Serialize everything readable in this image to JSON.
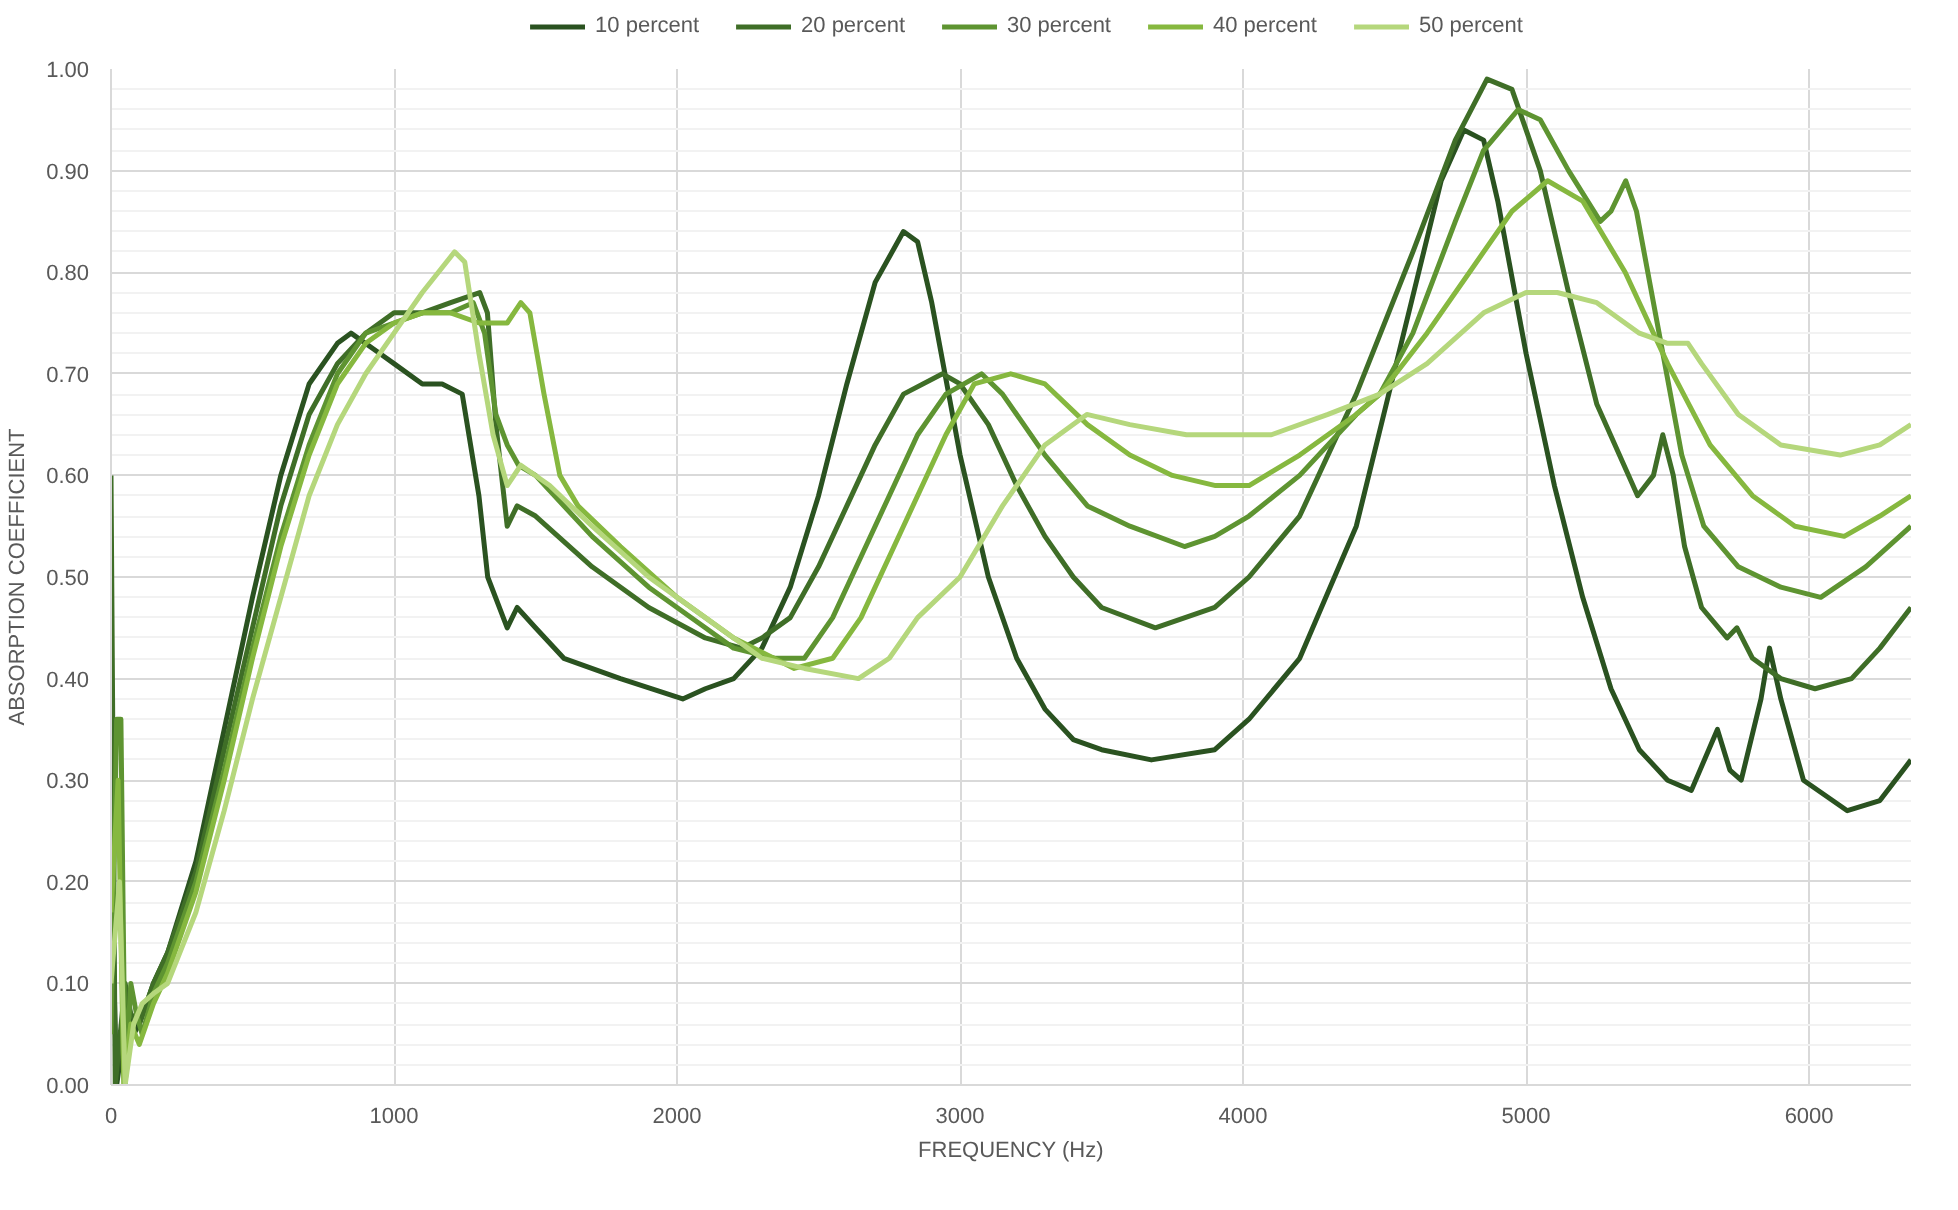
{
  "chart_data": {
    "type": "line",
    "xlabel": "FREQUENCY (Hz)",
    "ylabel": "ABSORPTION COEFFICIENT",
    "xlim": [
      0,
      6360
    ],
    "ylim": [
      0,
      1
    ],
    "xticks": [
      0,
      1000,
      2000,
      3000,
      4000,
      5000,
      6000
    ],
    "yticks": [
      {
        "value": 0,
        "label": "0.00"
      },
      {
        "value": 0.1,
        "label": "0.10"
      },
      {
        "value": 0.2,
        "label": "0.20"
      },
      {
        "value": 0.3,
        "label": "0.30"
      },
      {
        "value": 0.4,
        "label": "0.40"
      },
      {
        "value": 0.5,
        "label": "0.50"
      },
      {
        "value": 0.6,
        "label": "0.60"
      },
      {
        "value": 0.7,
        "label": "0.70"
      },
      {
        "value": 0.8,
        "label": "0.80"
      },
      {
        "value": 0.9,
        "label": "0.90"
      },
      {
        "value": 1,
        "label": "1.00"
      }
    ],
    "grid": true,
    "legend": "top",
    "marker": "none",
    "line_style": "solid",
    "series": [
      {
        "name": "10 percent",
        "color": "#2a5220",
        "x": [
          0,
          20,
          60,
          80,
          100,
          150,
          200,
          300,
          400,
          500,
          600,
          700,
          800,
          848,
          950,
          1000,
          1100,
          1170,
          1241,
          1300,
          1331,
          1400,
          1435,
          1500,
          1600,
          1800,
          2020,
          2100,
          2200,
          2300,
          2400,
          2500,
          2600,
          2700,
          2800,
          2850,
          2900,
          3000,
          3100,
          3200,
          3300,
          3400,
          3500,
          3676,
          3900,
          4021,
          4200,
          4400,
          4550,
          4700,
          4780,
          4850,
          4900,
          5000,
          5100,
          5200,
          5300,
          5400,
          5500,
          5584,
          5676,
          5720,
          5760,
          5830,
          5860,
          5900,
          5980,
          6135,
          6250,
          6360
        ],
        "values": [
          0.22,
          0,
          0.08,
          0.05,
          0.06,
          0.1,
          0.13,
          0.22,
          0.35,
          0.48,
          0.6,
          0.69,
          0.73,
          0.74,
          0.72,
          0.71,
          0.69,
          0.69,
          0.68,
          0.58,
          0.5,
          0.45,
          0.47,
          0.45,
          0.42,
          0.4,
          0.38,
          0.39,
          0.4,
          0.43,
          0.49,
          0.58,
          0.69,
          0.79,
          0.84,
          0.83,
          0.77,
          0.62,
          0.5,
          0.42,
          0.37,
          0.34,
          0.33,
          0.32,
          0.33,
          0.36,
          0.42,
          0.55,
          0.72,
          0.89,
          0.94,
          0.93,
          0.87,
          0.72,
          0.59,
          0.48,
          0.39,
          0.33,
          0.3,
          0.29,
          0.35,
          0.31,
          0.3,
          0.38,
          0.43,
          0.38,
          0.3,
          0.27,
          0.28,
          0.32
        ]
      },
      {
        "name": "20 percent",
        "color": "#3f6e27",
        "x": [
          0,
          15,
          50,
          70,
          100,
          150,
          200,
          300,
          400,
          500,
          600,
          700,
          800,
          900,
          1000,
          1100,
          1200,
          1303,
          1330,
          1360,
          1380,
          1400,
          1435,
          1500,
          1700,
          1900,
          2100,
          2228,
          2300,
          2400,
          2500,
          2600,
          2700,
          2800,
          2938,
          3000,
          3100,
          3200,
          3300,
          3400,
          3500,
          3690,
          3900,
          4021,
          4200,
          4400,
          4600,
          4750,
          4862,
          4950,
          5050,
          5150,
          5250,
          5394,
          5450,
          5483,
          5520,
          5560,
          5620,
          5710,
          5745,
          5800,
          5900,
          6021,
          6150,
          6250,
          6360
        ],
        "values": [
          0.6,
          0,
          0.1,
          0.07,
          0.06,
          0.1,
          0.13,
          0.21,
          0.33,
          0.45,
          0.57,
          0.66,
          0.71,
          0.74,
          0.76,
          0.76,
          0.77,
          0.78,
          0.76,
          0.65,
          0.6,
          0.55,
          0.57,
          0.56,
          0.51,
          0.47,
          0.44,
          0.43,
          0.44,
          0.46,
          0.51,
          0.57,
          0.63,
          0.68,
          0.7,
          0.69,
          0.65,
          0.59,
          0.54,
          0.5,
          0.47,
          0.45,
          0.47,
          0.5,
          0.56,
          0.68,
          0.82,
          0.93,
          0.99,
          0.98,
          0.9,
          0.78,
          0.67,
          0.58,
          0.6,
          0.64,
          0.6,
          0.53,
          0.47,
          0.44,
          0.45,
          0.42,
          0.4,
          0.39,
          0.4,
          0.43,
          0.47
        ]
      },
      {
        "name": "30 percent",
        "color": "#5e9431",
        "x": [
          0,
          20,
          35,
          50,
          70,
          90,
          110,
          150,
          200,
          300,
          400,
          500,
          600,
          700,
          800,
          900,
          1000,
          1100,
          1200,
          1280,
          1320,
          1360,
          1400,
          1440,
          1500,
          1700,
          1900,
          2100,
          2200,
          2345,
          2450,
          2550,
          2650,
          2750,
          2850,
          2950,
          3076,
          3150,
          3300,
          3450,
          3600,
          3793,
          3900,
          4021,
          4200,
          4400,
          4483,
          4600,
          4750,
          4850,
          4972,
          5050,
          5150,
          5262,
          5300,
          5352,
          5390,
          5450,
          5550,
          5628,
          5750,
          5900,
          6041,
          6200,
          6360
        ],
        "values": [
          0.05,
          0.36,
          0.36,
          0,
          0.1,
          0.07,
          0.05,
          0.09,
          0.12,
          0.2,
          0.31,
          0.43,
          0.54,
          0.63,
          0.7,
          0.74,
          0.75,
          0.76,
          0.76,
          0.77,
          0.74,
          0.66,
          0.63,
          0.61,
          0.6,
          0.54,
          0.49,
          0.45,
          0.43,
          0.42,
          0.42,
          0.46,
          0.52,
          0.58,
          0.64,
          0.68,
          0.7,
          0.68,
          0.62,
          0.57,
          0.55,
          0.53,
          0.54,
          0.56,
          0.6,
          0.66,
          0.68,
          0.74,
          0.85,
          0.92,
          0.96,
          0.95,
          0.9,
          0.85,
          0.86,
          0.89,
          0.86,
          0.77,
          0.62,
          0.55,
          0.51,
          0.49,
          0.48,
          0.51,
          0.55
        ]
      },
      {
        "name": "40 percent",
        "color": "#86b83f",
        "x": [
          0,
          25,
          45,
          70,
          100,
          150,
          200,
          300,
          400,
          500,
          600,
          700,
          800,
          900,
          1000,
          1100,
          1200,
          1300,
          1400,
          1448,
          1480,
          1530,
          1586,
          1650,
          1800,
          2000,
          2200,
          2414,
          2550,
          2650,
          2800,
          2950,
          3050,
          3179,
          3300,
          3450,
          3600,
          3750,
          3903,
          4021,
          4200,
          4400,
          4483,
          4650,
          4800,
          4950,
          5076,
          5200,
          5350,
          5500,
          5650,
          5800,
          5950,
          6124,
          6250,
          6360
        ],
        "values": [
          0.17,
          0.3,
          0,
          0.06,
          0.04,
          0.08,
          0.11,
          0.19,
          0.3,
          0.42,
          0.53,
          0.62,
          0.69,
          0.73,
          0.75,
          0.76,
          0.76,
          0.75,
          0.75,
          0.77,
          0.76,
          0.68,
          0.6,
          0.57,
          0.53,
          0.48,
          0.44,
          0.41,
          0.42,
          0.46,
          0.55,
          0.64,
          0.69,
          0.7,
          0.69,
          0.65,
          0.62,
          0.6,
          0.59,
          0.59,
          0.62,
          0.66,
          0.68,
          0.74,
          0.8,
          0.86,
          0.89,
          0.87,
          0.8,
          0.71,
          0.63,
          0.58,
          0.55,
          0.54,
          0.56,
          0.58
        ]
      },
      {
        "name": "50 percent",
        "color": "#b5d77c",
        "x": [
          0,
          30,
          50,
          80,
          110,
          150,
          200,
          300,
          400,
          500,
          600,
          700,
          800,
          900,
          1000,
          1100,
          1214,
          1250,
          1300,
          1350,
          1400,
          1448,
          1550,
          1700,
          1900,
          2100,
          2300,
          2450,
          2641,
          2750,
          2850,
          3000,
          3150,
          3300,
          3448,
          3600,
          3800,
          3952,
          4100,
          4300,
          4483,
          4650,
          4850,
          5000,
          5110,
          5250,
          5400,
          5500,
          5572,
          5620,
          5750,
          5900,
          6110,
          6250,
          6360
        ],
        "values": [
          0.1,
          0.2,
          0,
          0.06,
          0.08,
          0.09,
          0.1,
          0.17,
          0.27,
          0.38,
          0.48,
          0.58,
          0.65,
          0.7,
          0.74,
          0.78,
          0.82,
          0.81,
          0.72,
          0.64,
          0.59,
          0.61,
          0.59,
          0.55,
          0.5,
          0.46,
          0.42,
          0.41,
          0.4,
          0.42,
          0.46,
          0.5,
          0.57,
          0.63,
          0.66,
          0.65,
          0.64,
          0.64,
          0.64,
          0.66,
          0.68,
          0.71,
          0.76,
          0.78,
          0.78,
          0.77,
          0.74,
          0.73,
          0.73,
          0.71,
          0.66,
          0.63,
          0.62,
          0.63,
          0.65
        ]
      }
    ]
  }
}
